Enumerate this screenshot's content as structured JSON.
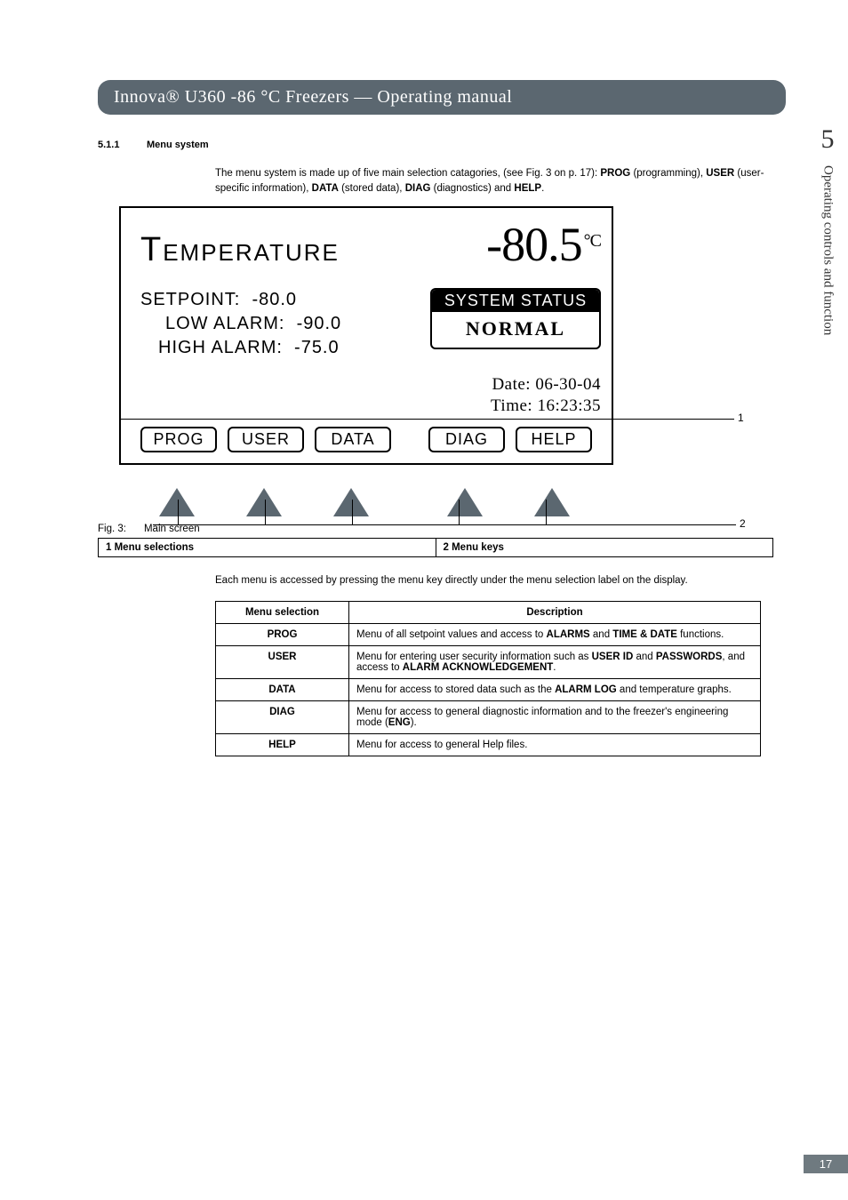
{
  "header": {
    "title": "Innova® U360 -86 °C Freezers  —  Operating manual"
  },
  "side": {
    "chapter_number": "5",
    "chapter_title": "Operating controls and function"
  },
  "section": {
    "number": "5.1.1",
    "title": "Menu system"
  },
  "intro_html": "The menu system is made up of five main selection catagories, (see Fig. 3 on p. 17): <b>PROG</b> (programming), <b>USER</b> (user-specific information), <b>DATA</b> (stored data), <b>DIAG</b> (diagnostics) and <b>HELP</b>.",
  "screen": {
    "temp_label": "EMPERATURE",
    "temp_label_prefix": "T",
    "temp_value": "-80.5",
    "temp_unit": "°C",
    "setpoint": "SETPOINT:  -80.0",
    "low_alarm": "LOW ALARM:  -90.0",
    "high_alarm": "HIGH ALARM:  -75.0",
    "status_head": "SYSTEM STATUS",
    "status_body": "NORMAL",
    "date": "Date: 06-30-04",
    "time": "Time: 16:23:35",
    "menu": [
      "PROG",
      "USER",
      "DATA",
      "DIAG",
      "HELP"
    ],
    "triangle_color": "#5b6770"
  },
  "callouts": {
    "1": "1",
    "2": "2"
  },
  "fig_caption": {
    "num": "Fig. 3:",
    "text": "Main screen"
  },
  "legend": {
    "c1": "1   Menu selections",
    "c2": "2   Menu keys"
  },
  "after_fig_text": "Each menu is accessed by pressing the menu key directly under the menu selection label on the display.",
  "desc_table": {
    "head": [
      "Menu selection",
      "Description"
    ],
    "rows": [
      [
        "PROG",
        "Menu of all setpoint values and access to <b>ALARMS</b> and <b>TIME & DATE</b> functions."
      ],
      [
        "USER",
        "Menu for entering user security information such as <b>USER ID</b> and <b>PASSWORDS</b>, and access to <b>ALARM ACKNOWLEDGEMENT</b>."
      ],
      [
        "DATA",
        "Menu for access to stored data such as the <b>ALARM LOG</b> and temperature graphs."
      ],
      [
        "DIAG",
        "Menu for access to general diagnostic information and to the freezer's engineering mode (<b>ENG</b>)."
      ],
      [
        "HELP",
        "Menu for access to general Help files."
      ]
    ]
  },
  "page_number": "17"
}
